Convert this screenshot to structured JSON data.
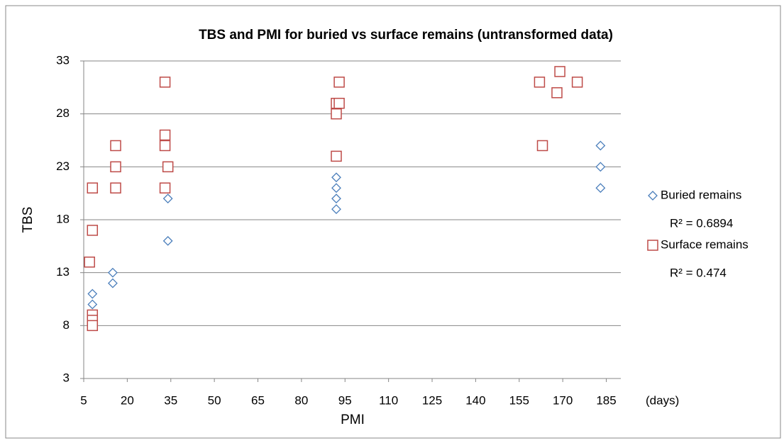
{
  "chart_data": {
    "type": "scatter",
    "title": "TBS and PMI for buried vs surface remains (untransformed data)",
    "x_label": "PMI",
    "y_label": "TBS",
    "x_unit_note": "(days)",
    "xlim": [
      5,
      190
    ],
    "xticks": [
      5,
      20,
      35,
      50,
      65,
      80,
      95,
      110,
      125,
      140,
      155,
      170,
      185
    ],
    "ylim": [
      3,
      33
    ],
    "yticks": [
      3,
      8,
      13,
      18,
      23,
      28,
      33
    ],
    "grid": true,
    "legend": "right",
    "series": [
      {
        "name": "Buried remains",
        "color": "#4a7ebb",
        "marker": "diamond",
        "r2_label": "R² = 0.6894",
        "x": [
          8,
          8,
          8,
          8,
          8,
          15,
          15,
          34,
          34,
          92,
          92,
          92,
          92,
          183,
          183,
          183
        ],
        "values": [
          11,
          10,
          9,
          8.5,
          8,
          13,
          12,
          20,
          16,
          22,
          21,
          20,
          19,
          25,
          23,
          21
        ]
      },
      {
        "name": "Surface remains",
        "color": "#be4b48",
        "marker": "square",
        "r2_label": "R² = 0.474",
        "x": [
          7,
          8,
          8,
          8,
          8,
          8,
          16,
          16,
          16,
          33,
          33,
          33,
          33,
          34,
          92,
          92,
          92,
          93,
          93,
          162,
          163,
          168,
          169,
          175
        ],
        "values": [
          14,
          21,
          17,
          9,
          8.5,
          8,
          25,
          23,
          21,
          31,
          26,
          25,
          21,
          23,
          29,
          28,
          24,
          31,
          29,
          31,
          25,
          30,
          32,
          31
        ]
      }
    ]
  }
}
